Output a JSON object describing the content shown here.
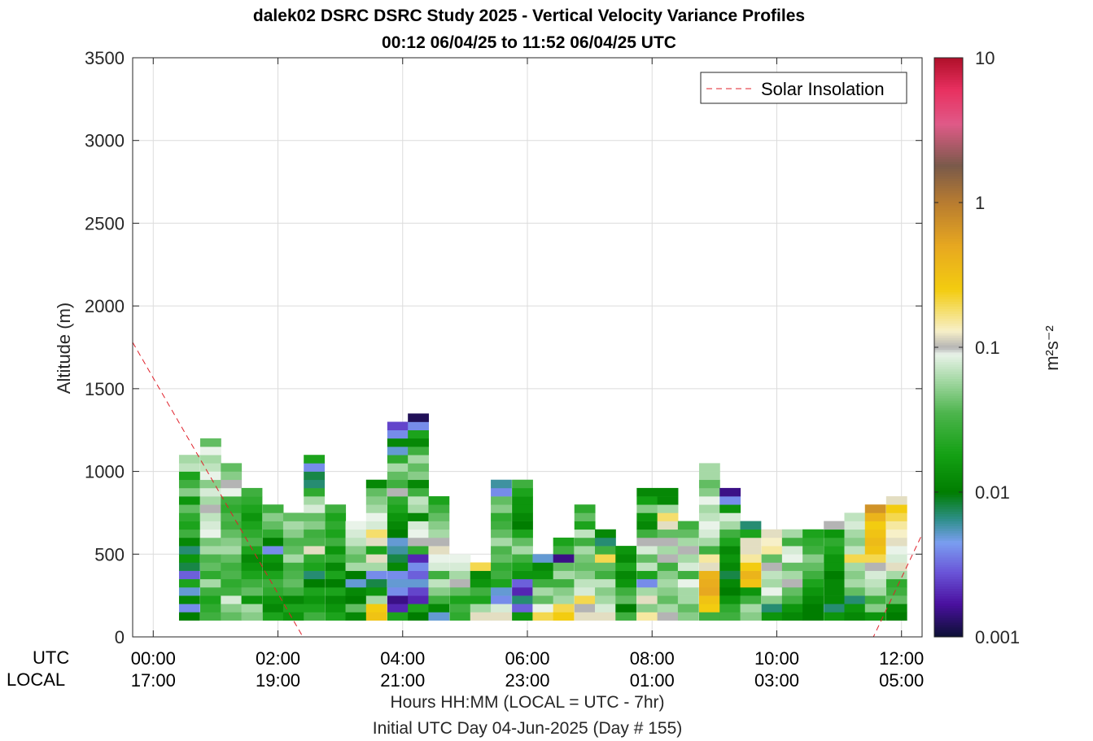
{
  "title": {
    "line1": "dalek02 DSRC DSRC Study 2025 - Vertical Velocity Variance Profiles",
    "line2": "00:12 06/04/25 to 11:52 06/04/25  UTC"
  },
  "axis_row_labels": {
    "utc": "UTC",
    "local": "LOCAL"
  },
  "xlabel": {
    "line1": "Hours HH:MM  (LOCAL = UTC - 7hr)",
    "line2": "Initial UTC Day 04-Jun-2025 (Day # 155)"
  },
  "colors": {
    "solar_line": "#e0202a",
    "grid": "#dcdcdc",
    "axis": "#262626"
  },
  "chart_data": {
    "type": "heatmap",
    "ylabel": "Altitude (m)",
    "ylim": [
      0,
      3500
    ],
    "yticks": [
      0,
      500,
      1000,
      1500,
      2000,
      2500,
      3000,
      3500
    ],
    "xlim_hours": [
      -0.33,
      12.33
    ],
    "xticks": [
      {
        "hour": 0,
        "utc": "00:00",
        "local": "17:00"
      },
      {
        "hour": 2,
        "utc": "02:00",
        "local": "19:00"
      },
      {
        "hour": 4,
        "utc": "04:00",
        "local": "21:00"
      },
      {
        "hour": 6,
        "utc": "06:00",
        "local": "23:00"
      },
      {
        "hour": 8,
        "utc": "08:00",
        "local": "01:00"
      },
      {
        "hour": 10,
        "utc": "10:00",
        "local": "03:00"
      },
      {
        "hour": 12,
        "utc": "12:00",
        "local": "05:00"
      }
    ],
    "grid": true,
    "legend": {
      "entries": [
        "Solar Insolation"
      ],
      "position": "top-right"
    },
    "colorbar": {
      "label": "m²s⁻²",
      "scale": "log",
      "range": [
        0.001,
        10
      ],
      "ticks": [
        {
          "value": 0.001,
          "label": "0.001"
        },
        {
          "value": 0.01,
          "label": "0.01"
        },
        {
          "value": 0.1,
          "label": "0.1"
        },
        {
          "value": 1,
          "label": "1"
        },
        {
          "value": 10,
          "label": "10"
        }
      ],
      "stops": [
        {
          "v": 0.001,
          "c": "#0b1033"
        },
        {
          "v": 0.0017,
          "c": "#4a10a0"
        },
        {
          "v": 0.0028,
          "c": "#6a55d8"
        },
        {
          "v": 0.0045,
          "c": "#7a9ef0"
        },
        {
          "v": 0.0065,
          "c": "#2e8f8a"
        },
        {
          "v": 0.01,
          "c": "#007d00"
        },
        {
          "v": 0.018,
          "c": "#13a013"
        },
        {
          "v": 0.035,
          "c": "#4cb44c"
        },
        {
          "v": 0.06,
          "c": "#a6d9a6"
        },
        {
          "v": 0.09,
          "c": "#e9f3e9"
        },
        {
          "v": 0.1,
          "c": "#b4b4b4"
        },
        {
          "v": 0.13,
          "c": "#f7f0c8"
        },
        {
          "v": 0.25,
          "c": "#f3cc10"
        },
        {
          "v": 0.5,
          "c": "#e7a820"
        },
        {
          "v": 1.0,
          "c": "#b87c30"
        },
        {
          "v": 1.8,
          "c": "#7a5a4a"
        },
        {
          "v": 3.5,
          "c": "#e05a88"
        },
        {
          "v": 6.0,
          "c": "#e83060"
        },
        {
          "v": 10.0,
          "c": "#b0102a"
        }
      ]
    },
    "solar_insolation_line": {
      "series": "Solar Insolation",
      "x_hours": [
        -0.33,
        2.4,
        11.55,
        12.33
      ],
      "altitude_m": [
        1780,
        0,
        0,
        620
      ]
    },
    "bin_width_hours": 0.333,
    "bin_height_m": 50,
    "profiles": [
      {
        "t": 0.58,
        "z0": 100,
        "v": [
          0.01,
          0.004,
          0.012,
          0.005,
          0.02,
          0.003,
          0.008,
          0.015,
          0.007,
          0.012,
          0.03,
          0.02,
          0.025,
          0.04,
          0.015,
          0.05,
          0.03,
          0.02,
          0.07,
          0.06
        ]
      },
      {
        "t": 0.92,
        "z0": 100,
        "v": [
          0.03,
          0.025,
          0.02,
          0.03,
          0.06,
          0.025,
          0.04,
          0.035,
          0.06,
          0.045,
          0.09,
          0.08,
          0.07,
          0.1,
          0.06,
          0.08,
          0.05,
          0.09,
          0.07,
          0.06,
          0.09,
          0.04
        ]
      },
      {
        "t": 1.25,
        "z0": 100,
        "v": [
          0.04,
          0.05,
          0.08,
          0.03,
          0.025,
          0.035,
          0.03,
          0.04,
          0.06,
          0.05,
          0.04,
          0.03,
          0.035,
          0.025,
          0.03,
          0.09,
          0.1,
          0.05,
          0.04
        ]
      },
      {
        "t": 1.58,
        "z0": 100,
        "v": [
          0.05,
          0.06,
          0.015,
          0.04,
          0.03,
          0.02,
          0.015,
          0.012,
          0.02,
          0.035,
          0.025,
          0.02,
          0.015,
          0.02,
          0.025,
          0.03
        ]
      },
      {
        "t": 1.92,
        "z0": 100,
        "v": [
          0.02,
          0.012,
          0.015,
          0.025,
          0.03,
          0.02,
          0.012,
          0.015,
          0.004,
          0.01,
          0.025,
          0.04,
          0.05,
          0.03
        ]
      },
      {
        "t": 2.25,
        "z0": 100,
        "v": [
          0.015,
          0.02,
          0.012,
          0.03,
          0.04,
          0.035,
          0.03,
          0.06,
          0.04,
          0.035,
          0.05,
          0.06,
          0.04
        ]
      },
      {
        "t": 2.58,
        "z0": 100,
        "v": [
          0.03,
          0.02,
          0.015,
          0.02,
          0.01,
          0.007,
          0.02,
          0.025,
          0.12,
          0.035,
          0.03,
          0.05,
          0.04,
          0.08,
          0.06,
          0.025,
          0.007,
          0.008,
          0.004,
          0.02
        ]
      },
      {
        "t": 2.92,
        "z0": 100,
        "v": [
          0.02,
          0.015,
          0.012,
          0.02,
          0.01,
          0.02,
          0.012,
          0.025,
          0.015,
          0.03,
          0.02,
          0.025,
          0.02,
          0.03
        ]
      },
      {
        "t": 3.25,
        "z0": 100,
        "v": [
          0.012,
          0.04,
          0.01,
          0.012,
          0.005,
          0.01,
          0.06,
          0.04,
          0.05,
          0.07,
          0.08,
          0.09
        ]
      },
      {
        "t": 3.58,
        "z0": 100,
        "v": [
          0.3,
          0.25,
          0.06,
          0.015,
          0.008,
          0.004,
          0.06,
          0.12,
          0.02,
          0.12,
          0.18,
          0.08,
          0.09,
          0.06,
          0.05,
          0.04,
          0.012
        ]
      },
      {
        "t": 3.92,
        "z0": 100,
        "v": [
          0.02,
          0.002,
          0.0015,
          0.004,
          0.005,
          0.004,
          0.012,
          0.008,
          0.006,
          0.005,
          0.01,
          0.012,
          0.015,
          0.02,
          0.025,
          0.1,
          0.03,
          0.04,
          0.06,
          0.025,
          0.005,
          0.012,
          0.004,
          0.0025
        ]
      },
      {
        "t": 4.25,
        "z0": 100,
        "v": [
          0.01,
          0.02,
          0.002,
          0.0025,
          0.005,
          0.003,
          0.004,
          0.002,
          0.025,
          0.1,
          0.09,
          0.08,
          0.012,
          0.06,
          0.07,
          0.03,
          0.012,
          0.05,
          0.04,
          0.06,
          0.03,
          0.012,
          0.02,
          0.004,
          0.0012
        ]
      },
      {
        "t": 4.58,
        "z0": 100,
        "v": [
          0.005,
          0.012,
          0.03,
          0.05,
          0.07,
          0.03,
          0.08,
          0.09,
          0.12,
          0.1,
          0.06,
          0.05,
          0.04,
          0.03,
          0.02
        ]
      },
      {
        "t": 4.92,
        "z0": 100,
        "v": [
          0.025,
          0.03,
          0.02,
          0.04,
          0.1,
          0.06,
          0.08,
          0.09
        ]
      },
      {
        "t": 5.25,
        "z0": 100,
        "v": [
          0.12,
          0.06,
          0.02,
          0.03,
          0.015,
          0.012,
          0.2
        ]
      },
      {
        "t": 5.58,
        "z0": 100,
        "v": [
          0.12,
          0.08,
          0.004,
          0.005,
          0.02,
          0.03,
          0.025,
          0.04,
          0.035,
          0.06,
          0.04,
          0.03,
          0.025,
          0.05,
          0.04,
          0.004,
          0.006
        ]
      },
      {
        "t": 5.92,
        "z0": 100,
        "v": [
          0.015,
          0.003,
          0.007,
          0.002,
          0.003,
          0.015,
          0.02,
          0.03,
          0.06,
          0.04,
          0.02,
          0.01,
          0.012,
          0.015,
          0.015,
          0.02,
          0.03
        ]
      },
      {
        "t": 6.25,
        "z0": 100,
        "v": [
          0.2,
          0.09,
          0.04,
          0.06,
          0.03,
          0.015,
          0.012,
          0.005
        ]
      },
      {
        "t": 6.58,
        "z0": 100,
        "v": [
          0.25,
          0.2,
          0.06,
          0.05,
          0.03,
          0.06,
          0.04,
          0.0015,
          0.03,
          0.02
        ]
      },
      {
        "t": 6.92,
        "z0": 100,
        "v": [
          0.12,
          0.1,
          0.2,
          0.08,
          0.07,
          0.05,
          0.04,
          0.045,
          0.06,
          0.03,
          0.07,
          0.02,
          0.04,
          0.025
        ]
      },
      {
        "t": 7.25,
        "z0": 100,
        "v": [
          0.12,
          0.08,
          0.06,
          0.05,
          0.07,
          0.03,
          0.04,
          0.2,
          0.03,
          0.007,
          0.012
        ]
      },
      {
        "t": 7.58,
        "z0": 100,
        "v": [
          0.03,
          0.01,
          0.04,
          0.03,
          0.015,
          0.012,
          0.02,
          0.012,
          0.015
        ]
      },
      {
        "t": 7.92,
        "z0": 100,
        "v": [
          0.15,
          0.05,
          0.12,
          0.06,
          0.004,
          0.02,
          0.07,
          0.04,
          0.08,
          0.1,
          0.03,
          0.012,
          0.015,
          0.05,
          0.018,
          0.012
        ]
      },
      {
        "t": 8.25,
        "z0": 100,
        "v": [
          0.1,
          0.06,
          0.04,
          0.05,
          0.06,
          0.05,
          0.03,
          0.1,
          0.06,
          0.1,
          0.04,
          0.12,
          0.18,
          0.06,
          0.012,
          0.012
        ]
      },
      {
        "t": 8.58,
        "z0": 100,
        "v": [
          0.05,
          0.04,
          0.06,
          0.06,
          0.09,
          0.03,
          0.08,
          0.06,
          0.1,
          0.06,
          0.04,
          0.03
        ]
      },
      {
        "t": 8.92,
        "z0": 100,
        "v": [
          0.03,
          0.25,
          0.3,
          0.5,
          0.45,
          0.4,
          0.12,
          0.15,
          0.03,
          0.06,
          0.08,
          0.09,
          0.07,
          0.06,
          0.09,
          0.05,
          0.04,
          0.06,
          0.06
        ]
      },
      {
        "t": 9.25,
        "z0": 100,
        "v": [
          0.03,
          0.025,
          0.015,
          0.01,
          0.012,
          0.008,
          0.012,
          0.015,
          0.012,
          0.02,
          0.03,
          0.06,
          0.08,
          0.015,
          0.004,
          0.0015
        ]
      },
      {
        "t": 9.58,
        "z0": 100,
        "v": [
          0.05,
          0.06,
          0.03,
          0.015,
          0.3,
          0.4,
          0.25,
          0.15,
          0.12,
          0.12,
          0.02,
          0.007
        ]
      },
      {
        "t": 9.92,
        "z0": 100,
        "v": [
          0.015,
          0.007,
          0.05,
          0.09,
          0.06,
          0.07,
          0.1,
          0.04,
          0.15,
          0.13,
          0.12
        ]
      },
      {
        "t": 10.25,
        "z0": 100,
        "v": [
          0.012,
          0.015,
          0.03,
          0.04,
          0.1,
          0.06,
          0.04,
          0.09,
          0.08,
          0.03,
          0.06
        ]
      },
      {
        "t": 10.58,
        "z0": 100,
        "v": [
          0.01,
          0.01,
          0.012,
          0.015,
          0.02,
          0.03,
          0.04,
          0.05,
          0.03,
          0.025,
          0.02
        ]
      },
      {
        "t": 10.92,
        "z0": 100,
        "v": [
          0.015,
          0.007,
          0.012,
          0.012,
          0.012,
          0.01,
          0.015,
          0.015,
          0.02,
          0.025,
          0.015,
          0.1
        ]
      },
      {
        "t": 11.25,
        "z0": 100,
        "v": [
          0.012,
          0.015,
          0.007,
          0.04,
          0.06,
          0.05,
          0.06,
          0.2,
          0.07,
          0.05,
          0.06,
          0.08,
          0.07
        ]
      },
      {
        "t": 11.58,
        "z0": 100,
        "v": [
          0.015,
          0.05,
          0.03,
          0.06,
          0.07,
          0.08,
          0.1,
          0.2,
          0.3,
          0.35,
          0.3,
          0.25,
          0.4,
          0.7
        ]
      },
      {
        "t": 11.92,
        "z0": 100,
        "v": [
          0.01,
          0.012,
          0.04,
          0.03,
          0.025,
          0.06,
          0.12,
          0.08,
          0.09,
          0.12,
          0.13,
          0.15,
          0.2,
          0.25,
          0.12
        ]
      }
    ]
  }
}
